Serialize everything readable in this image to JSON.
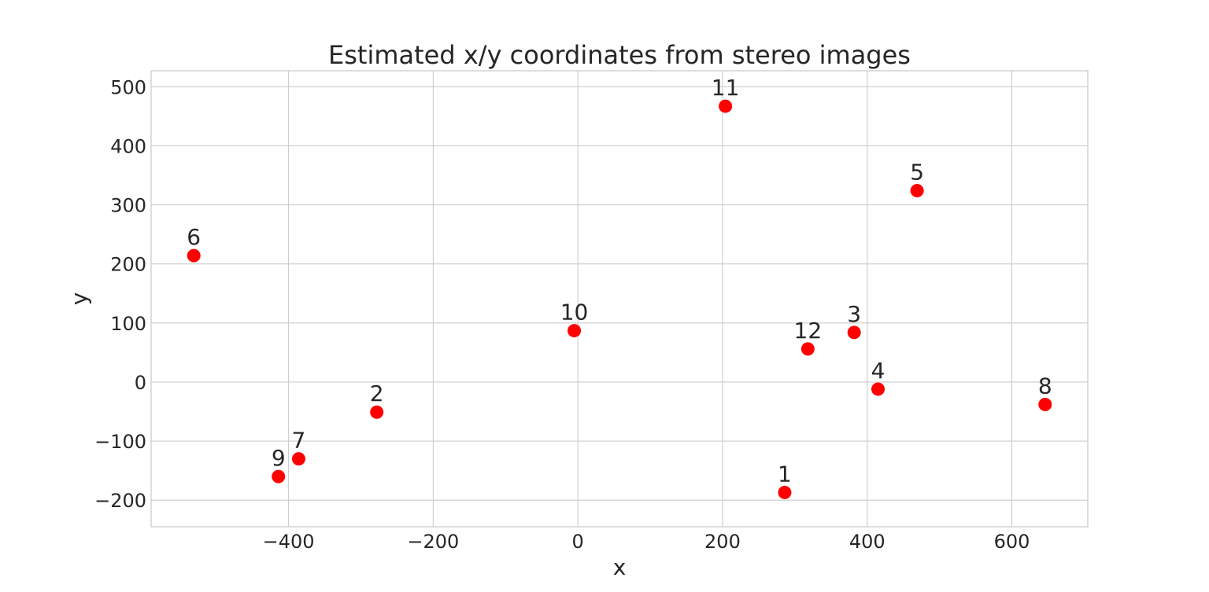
{
  "chart_data": {
    "type": "scatter",
    "title": "Estimated x/y coordinates from stereo images",
    "xlabel": "x",
    "ylabel": "y",
    "xlim": [
      -590,
      705
    ],
    "ylim": [
      -245,
      527
    ],
    "xticks": [
      -400,
      -200,
      0,
      200,
      400,
      600
    ],
    "yticks": [
      -200,
      -100,
      0,
      100,
      200,
      300,
      400,
      500
    ],
    "xtick_labels": [
      "−400",
      "−200",
      "0",
      "200",
      "400",
      "600"
    ],
    "ytick_labels": [
      "−200",
      "−100",
      "0",
      "100",
      "200",
      "300",
      "400",
      "500"
    ],
    "grid": true,
    "color": "#ff0000",
    "points": [
      {
        "label": "1",
        "x": 286,
        "y": -187
      },
      {
        "label": "2",
        "x": -278,
        "y": -51
      },
      {
        "label": "3",
        "x": 382,
        "y": 84
      },
      {
        "label": "4",
        "x": 415,
        "y": -12
      },
      {
        "label": "5",
        "x": 469,
        "y": 324
      },
      {
        "label": "6",
        "x": -531,
        "y": 214
      },
      {
        "label": "7",
        "x": -386,
        "y": -130
      },
      {
        "label": "8",
        "x": 646,
        "y": -38
      },
      {
        "label": "9",
        "x": -414,
        "y": -160
      },
      {
        "label": "10",
        "x": -5,
        "y": 87
      },
      {
        "label": "11",
        "x": 204,
        "y": 467
      },
      {
        "label": "12",
        "x": 318,
        "y": 56
      }
    ]
  }
}
